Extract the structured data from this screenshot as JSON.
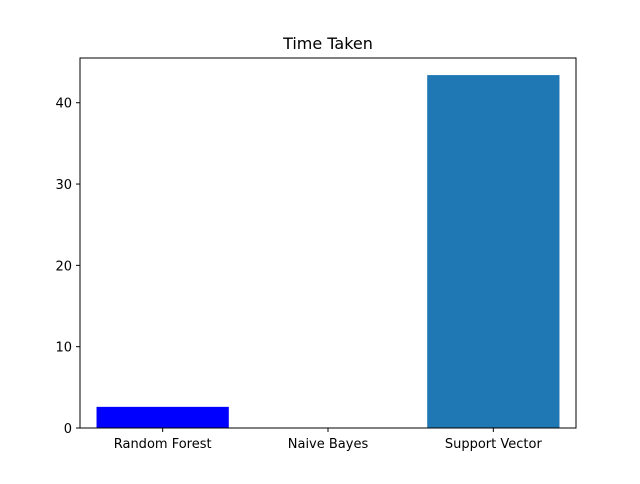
{
  "chart_data": {
    "type": "bar",
    "title": "Time Taken",
    "xlabel": "",
    "ylabel": "",
    "categories": [
      "Random Forest",
      "Naive Bayes",
      "Support Vector"
    ],
    "values": [
      2.6,
      0.05,
      43.4
    ],
    "bar_colors": [
      "#0000ff",
      "#1f77b4",
      "#1f77b4"
    ],
    "ylim": [
      0,
      45.5
    ],
    "yticks": [
      0,
      10,
      20,
      30,
      40
    ],
    "grid": false,
    "legend": "none"
  }
}
